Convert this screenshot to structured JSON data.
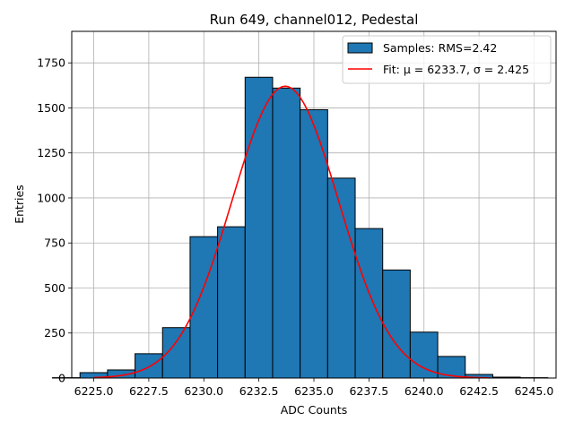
{
  "chart_data": {
    "type": "bar",
    "title": "Run 649, channel012, Pedestal",
    "xlabel": "ADC Counts",
    "ylabel": "Entries",
    "xlim": [
      6224.0,
      6246.0
    ],
    "ylim": [
      0,
      1925
    ],
    "xticks": [
      6225.0,
      6227.5,
      6230.0,
      6232.5,
      6235.0,
      6237.5,
      6240.0,
      6242.5,
      6245.0
    ],
    "xtick_labels": [
      "6225.0",
      "6227.5",
      "6230.0",
      "6232.5",
      "6235.0",
      "6237.5",
      "6240.0",
      "6242.5",
      "6245.0"
    ],
    "yticks": [
      0,
      250,
      500,
      750,
      1000,
      1250,
      1500,
      1750
    ],
    "ytick_labels": [
      "0",
      "250",
      "500",
      "750",
      "1000",
      "1250",
      "1500",
      "1750"
    ],
    "grid": true,
    "legend_position": "top-right",
    "histogram": {
      "name": "Samples: RMS=2.42",
      "color": "#1f77b4",
      "edgecolor": "#000000",
      "bins": [
        {
          "x0": 6225.0,
          "x1": 6226.25,
          "count": 2
        },
        {
          "x0": 6226.25,
          "x1": 6227.5,
          "count": 30
        },
        {
          "x0": 6227.5,
          "x1": 6228.75,
          "count": 45
        },
        {
          "x0": 6228.75,
          "x1": 6230.0,
          "count": 135
        },
        {
          "x0": 6230.0,
          "x1": 6231.25,
          "count": 280
        },
        {
          "x0": 6231.25,
          "x1": 6232.5,
          "count": 785
        },
        {
          "x0": 6232.5,
          "x1": 6233.75,
          "count": 840
        },
        {
          "x0": 6233.75,
          "x1": 6235.0,
          "count": 1670
        },
        {
          "x0": 6235.0,
          "x1": 6236.25,
          "count": 1610
        },
        {
          "x0": 6236.25,
          "x1": 6237.5,
          "count": 1490
        },
        {
          "x0": 6237.5,
          "x1": 6238.75,
          "count": 1110
        },
        {
          "x0": 6238.75,
          "x1": 6240.0,
          "count": 830
        },
        {
          "x0": 6240.0,
          "x1": 6241.25,
          "count": 600
        },
        {
          "x0": 6241.25,
          "x1": 6242.5,
          "count": 255
        },
        {
          "x0": 6242.5,
          "x1": 6243.75,
          "count": 120
        },
        {
          "x0": 6243.75,
          "x1": 6245.0,
          "count": 20
        },
        {
          "x0": 6245.0,
          "x1": 6246.25,
          "count": 5
        },
        {
          "x0": 6246.25,
          "x1": 6247.5,
          "count": 2
        },
        {
          "x0": 6247.5,
          "x1": 6248.75,
          "count": 0
        }
      ]
    },
    "fit": {
      "name": "Fit: μ = 6233.7, σ = 2.425",
      "mu": 6233.7,
      "sigma": 2.425,
      "amplitude": 1620,
      "x_range": [
        6225.0,
        6243.0
      ],
      "color": "#ff0000"
    }
  }
}
